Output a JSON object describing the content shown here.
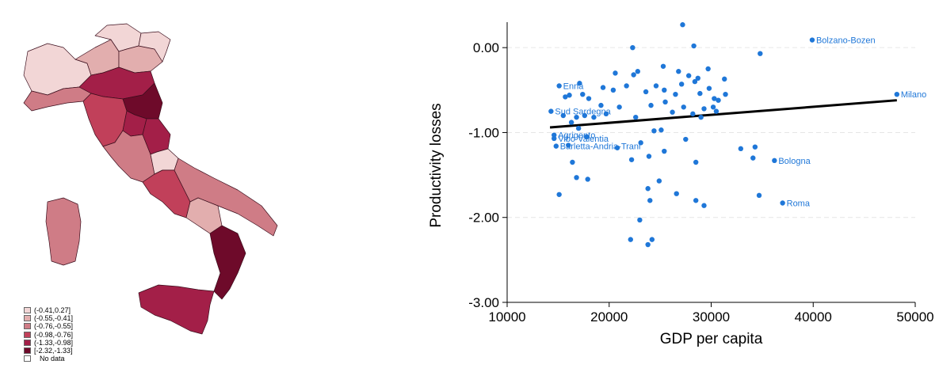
{
  "map": {
    "legend": [
      {
        "label": "(-0.41,0.27]",
        "color": "#f2d6d6"
      },
      {
        "label": "(-0.55,-0.41]",
        "color": "#e2aeae"
      },
      {
        "label": "(-0.76,-0.55]",
        "color": "#cf7c86"
      },
      {
        "label": "(-0.98,-0.76]",
        "color": "#c1405a"
      },
      {
        "label": "(-1.33,-0.98]",
        "color": "#a31f48"
      },
      {
        "label": "[-2.32,-1.33]",
        "color": "#6e0a2a"
      },
      {
        "label": "No data",
        "color": "#ffffff"
      }
    ]
  },
  "chart_data": {
    "type": "scatter",
    "title": "",
    "xlabel": "GDP per capita",
    "ylabel": "Productivity losses",
    "xlim": [
      10000,
      50000
    ],
    "ylim": [
      -3.0,
      0.3
    ],
    "x_ticks": [
      10000,
      20000,
      30000,
      40000,
      50000
    ],
    "x_tick_labels": [
      "10000",
      "20000",
      "30000",
      "40000",
      "50000"
    ],
    "y_ticks": [
      0,
      -1,
      -2,
      -3
    ],
    "y_tick_labels": [
      "0.00",
      "-1.00",
      "-2.00",
      "-3.00"
    ],
    "grid": "horizontal dashed",
    "point_color": "#1f77d8",
    "line_color": "#000000",
    "fit_line": {
      "x": [
        14200,
        48200
      ],
      "y": [
        -0.94,
        -0.62
      ]
    },
    "points": [
      {
        "x": 39900,
        "y": 0.09,
        "label": "Bolzano-Bozen"
      },
      {
        "x": 48200,
        "y": -0.55,
        "label": "Milano"
      },
      {
        "x": 36200,
        "y": -1.33,
        "label": "Bologna"
      },
      {
        "x": 37000,
        "y": -1.83,
        "label": "Roma"
      },
      {
        "x": 15100,
        "y": -0.45,
        "label": "Enna"
      },
      {
        "x": 14300,
        "y": -0.75,
        "label": "Sud Sardegna"
      },
      {
        "x": 14600,
        "y": -1.03,
        "label": "Agrigento"
      },
      {
        "x": 14600,
        "y": -1.07,
        "label": "Vibo Valentia"
      },
      {
        "x": 14800,
        "y": -1.16,
        "label": "Barletta-Andria-Trani"
      },
      {
        "x": 27200,
        "y": 0.27
      },
      {
        "x": 28300,
        "y": 0.02
      },
      {
        "x": 34800,
        "y": -0.07
      },
      {
        "x": 22300,
        "y": 0.0
      },
      {
        "x": 25300,
        "y": -0.22
      },
      {
        "x": 26800,
        "y": -0.28
      },
      {
        "x": 27800,
        "y": -0.33
      },
      {
        "x": 28700,
        "y": -0.36
      },
      {
        "x": 29700,
        "y": -0.25
      },
      {
        "x": 31300,
        "y": -0.37
      },
      {
        "x": 22800,
        "y": -0.28
      },
      {
        "x": 22400,
        "y": -0.32
      },
      {
        "x": 20600,
        "y": -0.3
      },
      {
        "x": 19400,
        "y": -0.47
      },
      {
        "x": 17100,
        "y": -0.42
      },
      {
        "x": 16100,
        "y": -0.56
      },
      {
        "x": 15700,
        "y": -0.58
      },
      {
        "x": 17400,
        "y": -0.55
      },
      {
        "x": 18000,
        "y": -0.6
      },
      {
        "x": 19200,
        "y": -0.68
      },
      {
        "x": 20400,
        "y": -0.5
      },
      {
        "x": 21700,
        "y": -0.45
      },
      {
        "x": 23600,
        "y": -0.52
      },
      {
        "x": 24600,
        "y": -0.45
      },
      {
        "x": 25400,
        "y": -0.5
      },
      {
        "x": 26500,
        "y": -0.55
      },
      {
        "x": 27100,
        "y": -0.43
      },
      {
        "x": 28400,
        "y": -0.4
      },
      {
        "x": 28900,
        "y": -0.54
      },
      {
        "x": 29800,
        "y": -0.48
      },
      {
        "x": 30300,
        "y": -0.6
      },
      {
        "x": 30700,
        "y": -0.62
      },
      {
        "x": 31400,
        "y": -0.55
      },
      {
        "x": 30200,
        "y": -0.7
      },
      {
        "x": 29300,
        "y": -0.72
      },
      {
        "x": 28200,
        "y": -0.78
      },
      {
        "x": 27300,
        "y": -0.7
      },
      {
        "x": 26200,
        "y": -0.76
      },
      {
        "x": 25500,
        "y": -0.64
      },
      {
        "x": 24100,
        "y": -0.68
      },
      {
        "x": 22600,
        "y": -0.82
      },
      {
        "x": 21000,
        "y": -0.7
      },
      {
        "x": 19700,
        "y": -0.78
      },
      {
        "x": 18500,
        "y": -0.82
      },
      {
        "x": 17600,
        "y": -0.8
      },
      {
        "x": 16800,
        "y": -0.82
      },
      {
        "x": 16300,
        "y": -0.88
      },
      {
        "x": 15500,
        "y": -0.8
      },
      {
        "x": 17000,
        "y": -0.95
      },
      {
        "x": 17800,
        "y": -1.05
      },
      {
        "x": 16000,
        "y": -1.15
      },
      {
        "x": 16400,
        "y": -1.35
      },
      {
        "x": 16800,
        "y": -1.53
      },
      {
        "x": 17900,
        "y": -1.55
      },
      {
        "x": 15100,
        "y": -1.73
      },
      {
        "x": 20800,
        "y": -1.18
      },
      {
        "x": 22200,
        "y": -1.32
      },
      {
        "x": 23900,
        "y": -1.28
      },
      {
        "x": 23100,
        "y": -1.12
      },
      {
        "x": 24400,
        "y": -0.98
      },
      {
        "x": 25100,
        "y": -0.97
      },
      {
        "x": 25400,
        "y": -1.22
      },
      {
        "x": 27500,
        "y": -1.08
      },
      {
        "x": 28500,
        "y": -1.35
      },
      {
        "x": 26600,
        "y": -1.72
      },
      {
        "x": 24900,
        "y": -1.57
      },
      {
        "x": 23800,
        "y": -1.66
      },
      {
        "x": 24000,
        "y": -1.8
      },
      {
        "x": 23000,
        "y": -2.03
      },
      {
        "x": 22100,
        "y": -2.26
      },
      {
        "x": 24200,
        "y": -2.26
      },
      {
        "x": 23800,
        "y": -2.32
      },
      {
        "x": 28500,
        "y": -1.8
      },
      {
        "x": 29300,
        "y": -1.86
      },
      {
        "x": 32900,
        "y": -1.19
      },
      {
        "x": 34300,
        "y": -1.17
      },
      {
        "x": 34100,
        "y": -1.3
      },
      {
        "x": 34700,
        "y": -1.74
      },
      {
        "x": 30500,
        "y": -0.75
      },
      {
        "x": 29000,
        "y": -0.82
      }
    ]
  }
}
